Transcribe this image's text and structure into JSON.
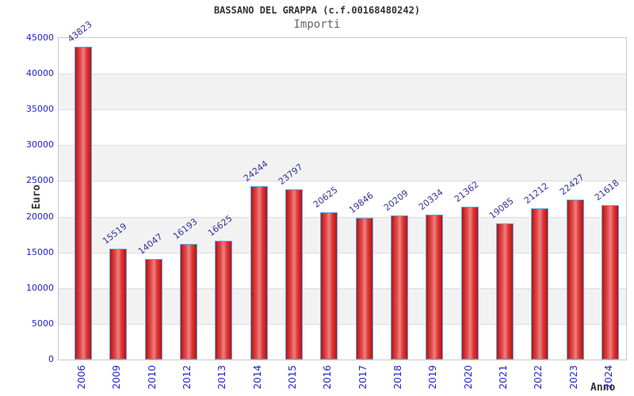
{
  "chart_data": {
    "type": "bar",
    "title": "BASSANO DEL GRAPPA (c.f.00168480242)",
    "subtitle": "Importi",
    "xlabel": "Anno",
    "ylabel": "Euro",
    "categories": [
      "2006",
      "2009",
      "2010",
      "2012",
      "2013",
      "2014",
      "2015",
      "2016",
      "2017",
      "2018",
      "2019",
      "2020",
      "2021",
      "2022",
      "2023",
      "2024"
    ],
    "values": [
      43823,
      15519,
      14047,
      16193,
      16625,
      24244,
      23797,
      20625,
      19846,
      20209,
      20334,
      21362,
      19085,
      21212,
      22427,
      21618
    ],
    "ylim": [
      0,
      45000
    ],
    "ytick_step": 5000,
    "yticks": [
      0,
      5000,
      10000,
      15000,
      20000,
      25000,
      30000,
      35000,
      40000,
      45000
    ],
    "grid": true,
    "legend_position": "none",
    "colors": {
      "bar_dark": "#bb1111",
      "bar_light": "#f08282",
      "bar_border": "#58a6e8",
      "value_label": "#333399",
      "tick_label": "#2222cc",
      "band_alt": "#f2f2f2",
      "gridline": "#dcdcdc",
      "frame": "#c8c8c8",
      "title_text": "#333333",
      "subtitle_text": "#666666"
    }
  }
}
